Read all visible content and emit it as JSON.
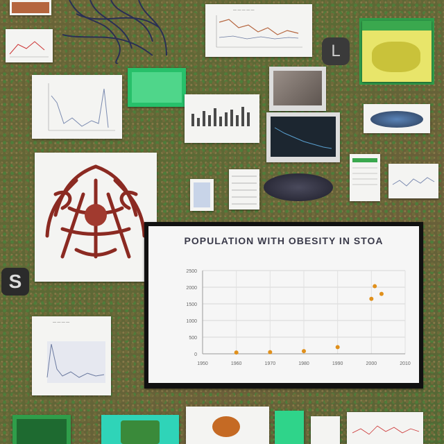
{
  "main_chart": {
    "title": "POPULATION WITH OBESITY IN STOA",
    "chart_data": {
      "type": "scatter",
      "title": "POPULATION WITH OBESITY IN STOA",
      "xlabel": "",
      "ylabel": "",
      "x_ticks": [
        "1950",
        "1960",
        "1970",
        "1980",
        "1990",
        "2000",
        "2010"
      ],
      "y_ticks": [
        "0",
        "500",
        "1000",
        "1500",
        "2000",
        "2500"
      ],
      "xlim": [
        1950,
        2010
      ],
      "ylim": [
        0,
        2500
      ],
      "grid": true,
      "series": [
        {
          "color": "#e0901c",
          "points": [
            {
              "x": 1960,
              "y": 40
            },
            {
              "x": 1970,
              "y": 50
            },
            {
              "x": 1980,
              "y": 80
            },
            {
              "x": 1990,
              "y": 200
            },
            {
              "x": 2000,
              "y": 1650
            },
            {
              "x": 2001,
              "y": 2030
            },
            {
              "x": 2003,
              "y": 1800
            }
          ]
        }
      ]
    }
  },
  "badges": {
    "s": "S",
    "l": "L"
  },
  "colors": {
    "accent_green": "#2f9e4a",
    "organ_red": "#8b2a22",
    "scatter_orange": "#e0901c"
  }
}
